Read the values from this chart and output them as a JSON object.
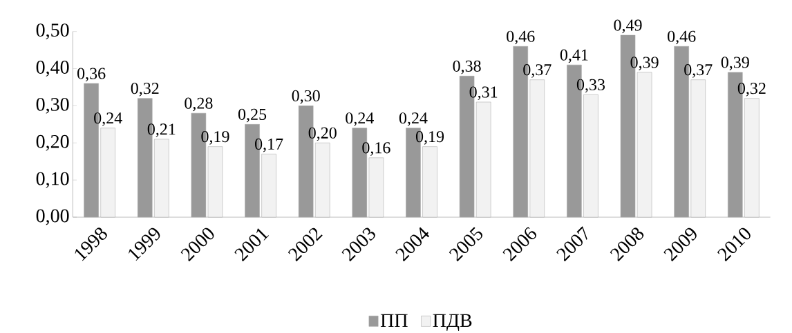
{
  "chart_data": {
    "type": "bar",
    "categories": [
      "1998",
      "1999",
      "2000",
      "2001",
      "2002",
      "2003",
      "2004",
      "2005",
      "2006",
      "2007",
      "2008",
      "2009",
      "2010"
    ],
    "series": [
      {
        "name": "ПП",
        "color": "#999999",
        "values": [
          0.36,
          0.32,
          0.28,
          0.25,
          0.3,
          0.24,
          0.24,
          0.38,
          0.46,
          0.41,
          0.49,
          0.46,
          0.39
        ],
        "value_labels": [
          "0,36",
          "0,32",
          "0,28",
          "0,25",
          "0,30",
          "0,24",
          "0,24",
          "0,38",
          "0,46",
          "0,41",
          "0,49",
          "0,46",
          "0,39"
        ]
      },
      {
        "name": "ПДВ",
        "color": "#f2f2f2",
        "values": [
          0.24,
          0.21,
          0.19,
          0.17,
          0.2,
          0.16,
          0.19,
          0.31,
          0.37,
          0.33,
          0.39,
          0.37,
          0.32
        ],
        "value_labels": [
          "0,24",
          "0,21",
          "0,19",
          "0,17",
          "0,20",
          "0,16",
          "0,19",
          "0,31",
          "0,37",
          "0,33",
          "0,39",
          "0,37",
          "0,32"
        ]
      }
    ],
    "ylim": [
      0,
      0.5
    ],
    "yticks": [
      {
        "value": 0,
        "label": "0,00"
      },
      {
        "value": 0.1,
        "label": "0,10"
      },
      {
        "value": 0.2,
        "label": "0,20"
      },
      {
        "value": 0.3,
        "label": "0,30"
      },
      {
        "value": 0.4,
        "label": "0,40"
      },
      {
        "value": 0.5,
        "label": "0,50"
      }
    ],
    "legend": "bottom"
  }
}
